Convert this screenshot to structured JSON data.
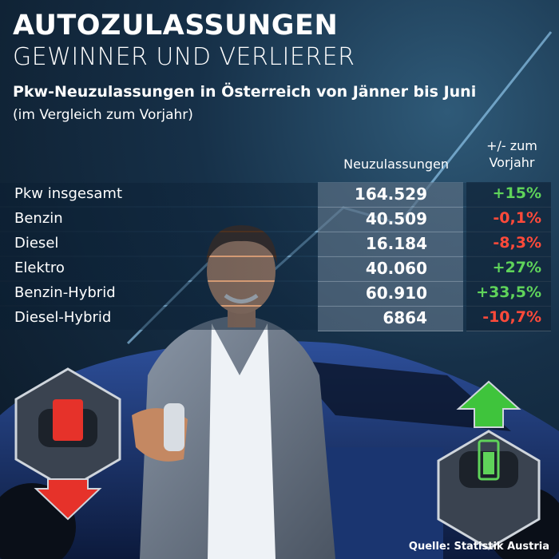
{
  "header": {
    "title": "AUTOZULASSUNGEN",
    "subtitle": "GEWINNER UND VERLIERER",
    "heading": "Pkw-Neuzulassungen in Österreich von Jänner bis Juni",
    "subheading": "(im Vergleich zum Vorjahr)"
  },
  "table": {
    "columns": [
      "Neuzulassungen",
      "+/- zum Vorjahr"
    ],
    "rows": [
      [
        "Pkw insgesamt",
        "164.529",
        "+15%"
      ],
      [
        "Benzin",
        "40.509",
        "-0,1%"
      ],
      [
        "Diesel",
        "16.184",
        "-8,3%"
      ],
      [
        "Elektro",
        "40.060",
        "+27%"
      ],
      [
        "Benzin-Hybrid",
        "60.910",
        "+33,5%"
      ],
      [
        "Diesel-Hybrid",
        "6864",
        "-10,7%"
      ]
    ]
  },
  "source": "Quelle: Statistik Austria"
}
